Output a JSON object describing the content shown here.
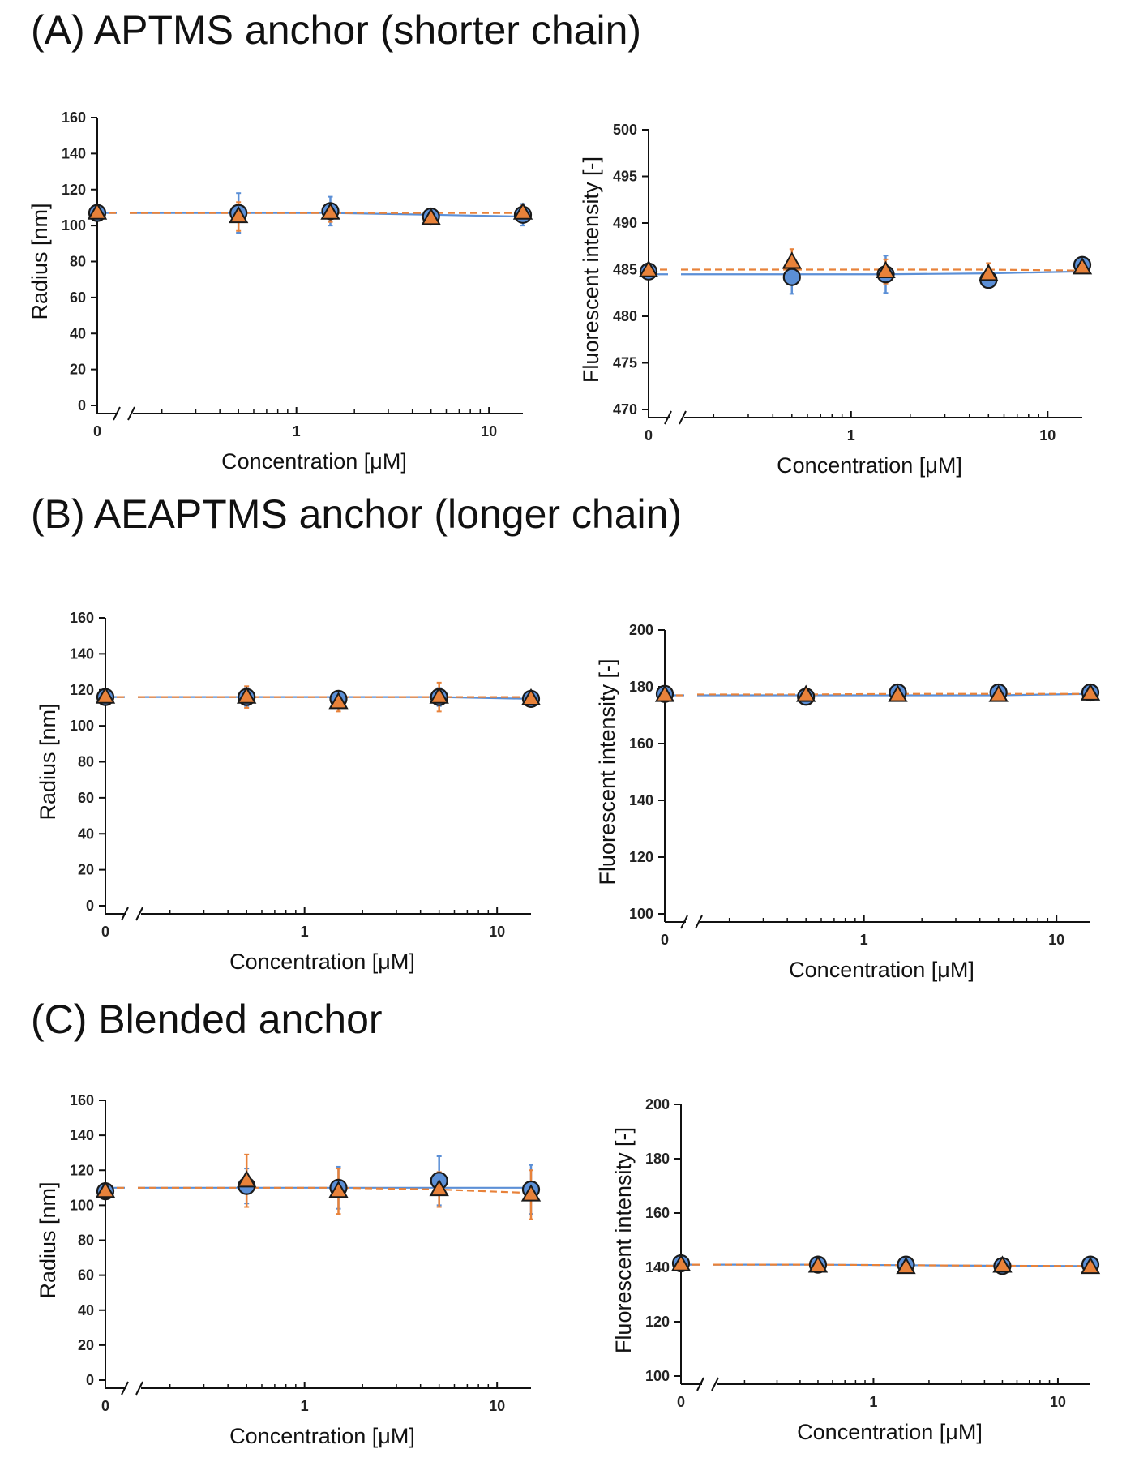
{
  "sections": {
    "a": "(A) APTMS anchor (shorter chain)",
    "b": "(B) AEAPTMS anchor (longer chain)",
    "c": "(C) Blended anchor"
  },
  "colors": {
    "blue": "#5b8fd6",
    "orange": "#e8823a",
    "marker_edge": "#1a1a1a"
  },
  "chart_data": [
    {
      "id": "A-radius",
      "type": "scatter",
      "xlabel": "Concentration [μM]",
      "ylabel": "Radius [nm]",
      "ylim": [
        0,
        160
      ],
      "yticks": [
        0,
        20,
        40,
        60,
        80,
        100,
        120,
        140,
        160
      ],
      "xscale": "log-with-break",
      "xlim_log": [
        0.15,
        15
      ],
      "xtick_labels": {
        "zero": "0",
        "one": "1",
        "ten": "10"
      },
      "x": [
        0,
        0.5,
        1.5,
        5,
        15
      ],
      "series": [
        {
          "name": "circle",
          "color": "blue",
          "marker": "circle",
          "line": "solid",
          "values": [
            107,
            107,
            108,
            105,
            106
          ],
          "errors": [
            0,
            11,
            8,
            0,
            6
          ],
          "fit": [
            107,
            107,
            107,
            106,
            105
          ]
        },
        {
          "name": "triangle",
          "color": "orange",
          "marker": "triangle",
          "line": "dashed",
          "values": [
            107,
            105,
            107,
            104,
            107
          ],
          "errors": [
            0,
            8,
            5,
            0,
            4
          ],
          "fit": [
            107,
            107,
            107,
            107,
            107
          ]
        }
      ]
    },
    {
      "id": "A-fluor",
      "type": "scatter",
      "xlabel": "Concentration [μM]",
      "ylabel": "Fluorescent intensity [-]",
      "ylim": [
        470,
        500
      ],
      "yticks": [
        470,
        475,
        480,
        485,
        490,
        495,
        500
      ],
      "xscale": "log-with-break",
      "xlim_log": [
        0.15,
        15
      ],
      "xtick_labels": {
        "zero": "0",
        "one": "1",
        "ten": "10"
      },
      "x": [
        0,
        0.5,
        1.5,
        5,
        15
      ],
      "series": [
        {
          "name": "circle",
          "color": "blue",
          "marker": "circle",
          "line": "solid",
          "values": [
            484.8,
            484.2,
            484.5,
            483.9,
            485.5
          ],
          "errors": [
            0,
            1.8,
            2.0,
            0,
            0
          ],
          "fit": [
            484.5,
            484.5,
            484.5,
            484.6,
            484.8
          ]
        },
        {
          "name": "triangle",
          "color": "orange",
          "marker": "triangle",
          "line": "dashed",
          "values": [
            484.9,
            485.8,
            484.8,
            484.5,
            485.2
          ],
          "errors": [
            0,
            1.4,
            1.3,
            1.2,
            0
          ],
          "fit": [
            485.0,
            485.0,
            485.0,
            485.0,
            484.9
          ]
        }
      ]
    },
    {
      "id": "B-radius",
      "type": "scatter",
      "xlabel": "Concentration [μM]",
      "ylabel": "Radius [nm]",
      "ylim": [
        0,
        160
      ],
      "yticks": [
        0,
        20,
        40,
        60,
        80,
        100,
        120,
        140,
        160
      ],
      "xscale": "log-with-break",
      "xlim_log": [
        0.15,
        15
      ],
      "xtick_labels": {
        "zero": "0",
        "one": "1",
        "ten": "10"
      },
      "x": [
        0,
        0.5,
        1.5,
        5,
        15
      ],
      "series": [
        {
          "name": "circle",
          "color": "blue",
          "marker": "circle",
          "line": "solid",
          "values": [
            116,
            116,
            115,
            116,
            115
          ],
          "errors": [
            0,
            5,
            4,
            5,
            4
          ],
          "fit": [
            116,
            116,
            116,
            116,
            115
          ]
        },
        {
          "name": "triangle",
          "color": "orange",
          "marker": "triangle",
          "line": "dashed",
          "values": [
            116,
            116,
            113,
            116,
            115
          ],
          "errors": [
            0,
            6,
            5,
            8,
            3
          ],
          "fit": [
            116,
            116,
            116,
            116,
            116
          ]
        }
      ]
    },
    {
      "id": "B-fluor",
      "type": "scatter",
      "xlabel": "Concentration [μM]",
      "ylabel": "Fluorescent intensity [-]",
      "ylim": [
        100,
        200
      ],
      "yticks": [
        100,
        120,
        140,
        160,
        180,
        200
      ],
      "xscale": "log-with-break",
      "xlim_log": [
        0.15,
        15
      ],
      "xtick_labels": {
        "zero": "0",
        "one": "1",
        "ten": "10"
      },
      "x": [
        0,
        0.5,
        1.5,
        5,
        15
      ],
      "series": [
        {
          "name": "circle",
          "color": "blue",
          "marker": "circle",
          "line": "solid",
          "values": [
            177.5,
            176.5,
            178,
            178,
            178
          ],
          "errors": [
            0,
            0,
            0,
            0,
            0
          ],
          "fit": [
            177,
            177,
            177,
            177,
            177.5
          ]
        },
        {
          "name": "triangle",
          "color": "orange",
          "marker": "triangle",
          "line": "dashed",
          "values": [
            177,
            177,
            177,
            177,
            177.5
          ],
          "errors": [
            0,
            0,
            0,
            0,
            0
          ],
          "fit": [
            177,
            177.3,
            177.5,
            177.5,
            177.5
          ]
        }
      ]
    },
    {
      "id": "C-radius",
      "type": "scatter",
      "xlabel": "Concentration [μM]",
      "ylabel": "Radius [nm]",
      "ylim": [
        0,
        160
      ],
      "yticks": [
        0,
        20,
        40,
        60,
        80,
        100,
        120,
        140,
        160
      ],
      "xscale": "log-with-break",
      "xlim_log": [
        0.15,
        15
      ],
      "xtick_labels": {
        "zero": "0",
        "one": "1",
        "ten": "10"
      },
      "x": [
        0,
        0.5,
        1.5,
        5,
        15
      ],
      "series": [
        {
          "name": "circle",
          "color": "blue",
          "marker": "circle",
          "line": "solid",
          "values": [
            108,
            111,
            110,
            114,
            109
          ],
          "errors": [
            0,
            10,
            12,
            14,
            14
          ],
          "fit": [
            110,
            110,
            110,
            110,
            110
          ]
        },
        {
          "name": "triangle",
          "color": "orange",
          "marker": "triangle",
          "line": "dashed",
          "values": [
            108,
            114,
            108,
            109,
            106
          ],
          "errors": [
            0,
            15,
            13,
            10,
            14
          ],
          "fit": [
            110,
            110,
            110,
            109,
            107
          ]
        }
      ]
    },
    {
      "id": "C-fluor",
      "type": "scatter",
      "xlabel": "Concentration [μM]",
      "ylabel": "Fluorescent intensity [-]",
      "ylim": [
        100,
        200
      ],
      "yticks": [
        100,
        120,
        140,
        160,
        180,
        200
      ],
      "xscale": "log-with-break",
      "xlim_log": [
        0.15,
        15
      ],
      "xtick_labels": {
        "zero": "0",
        "one": "1",
        "ten": "10"
      },
      "x": [
        0,
        0.5,
        1.5,
        5,
        15
      ],
      "series": [
        {
          "name": "circle",
          "color": "blue",
          "marker": "circle",
          "line": "solid",
          "values": [
            141.5,
            141,
            141,
            140.5,
            141
          ],
          "errors": [
            0,
            0,
            0,
            0,
            0
          ],
          "fit": [
            141,
            141,
            140.8,
            140.6,
            140.5
          ]
        },
        {
          "name": "triangle",
          "color": "orange",
          "marker": "triangle",
          "line": "dashed",
          "values": [
            141,
            140.5,
            140,
            140.5,
            140
          ],
          "errors": [
            0,
            0,
            0,
            0,
            0
          ],
          "fit": [
            141,
            141,
            140.8,
            140.6,
            140.5
          ]
        }
      ]
    }
  ]
}
